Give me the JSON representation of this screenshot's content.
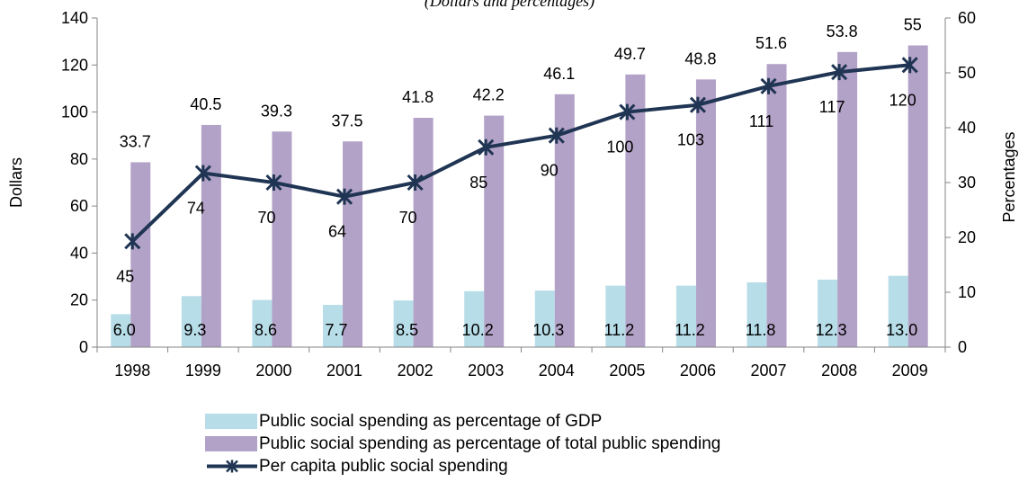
{
  "title_fragment": "(Dollars and percentages)",
  "chart_data": {
    "type": "bar",
    "categories": [
      "1998",
      "1999",
      "2000",
      "2001",
      "2002",
      "2003",
      "2004",
      "2005",
      "2006",
      "2007",
      "2008",
      "2009"
    ],
    "series": [
      {
        "name": "Public social spending as percentage of GDP",
        "axis": "right",
        "type": "bar",
        "values": [
          6.0,
          9.3,
          8.6,
          7.7,
          8.5,
          10.2,
          10.3,
          11.2,
          11.2,
          11.8,
          12.3,
          13.0
        ],
        "labels": [
          "6.0",
          "9.3",
          "8.6",
          "7.7",
          "8.5",
          "10.2",
          "10.3",
          "11.2",
          "11.2",
          "11.8",
          "12.3",
          "13.0"
        ],
        "color": "#b7dde8"
      },
      {
        "name": "Public social spending as percentage of total public spending",
        "axis": "right",
        "type": "bar",
        "values": [
          33.7,
          40.5,
          39.3,
          37.5,
          41.8,
          42.2,
          46.1,
          49.7,
          48.8,
          51.6,
          53.8,
          55
        ],
        "labels": [
          "33.7",
          "40.5",
          "39.3",
          "37.5",
          "41.8",
          "42.2",
          "46.1",
          "49.7",
          "48.8",
          "51.6",
          "53.8",
          "55"
        ],
        "color": "#b3a2c7"
      },
      {
        "name": "Per capita public social spending",
        "axis": "left",
        "type": "line",
        "values": [
          45,
          74,
          70,
          64,
          70,
          85,
          90,
          100,
          103,
          111,
          117,
          120
        ],
        "labels": [
          "45",
          "74",
          "70",
          "64",
          "70",
          "85",
          "90",
          "100",
          "103",
          "111",
          "117",
          "120"
        ],
        "color": "#1f3553"
      }
    ],
    "ylabel": "Dollars",
    "ylim": [
      0,
      140
    ],
    "yticks": [
      "0",
      "20",
      "40",
      "60",
      "80",
      "100",
      "120",
      "140"
    ],
    "y2label": "Percentages",
    "y2lim": [
      0,
      60
    ],
    "y2ticks": [
      "0",
      "10",
      "20",
      "30",
      "40",
      "50",
      "60"
    ],
    "grid": false,
    "legend_position": "bottom"
  },
  "legend": [
    {
      "label": "Public social spending as percentage of GDP",
      "kind": "bar",
      "color": "#b7dde8"
    },
    {
      "label": "Public social spending as percentage of total public spending",
      "kind": "bar",
      "color": "#b3a2c7"
    },
    {
      "label": "Per capita public social spending",
      "kind": "line",
      "color": "#1f3553"
    }
  ]
}
